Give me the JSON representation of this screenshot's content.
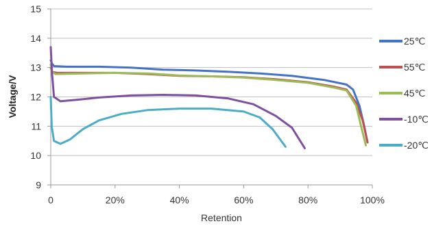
{
  "chart_data": {
    "type": "line",
    "title": "",
    "xlabel": "Retention",
    "ylabel": "Voltage/V",
    "xlim": [
      0,
      100
    ],
    "ylim": [
      9,
      15
    ],
    "grid": "horizontal",
    "legend_position": "right",
    "x_tick_labels": [
      {
        "value": 0,
        "label": "0"
      },
      {
        "value": 20,
        "label": "20%"
      },
      {
        "value": 40,
        "label": "40%"
      },
      {
        "value": 60,
        "label": "60%"
      },
      {
        "value": 80,
        "label": "80%"
      },
      {
        "value": 100,
        "label": "100%"
      }
    ],
    "y_tick_labels": [
      {
        "value": 9,
        "label": "9"
      },
      {
        "value": 10,
        "label": "10"
      },
      {
        "value": 11,
        "label": "11"
      },
      {
        "value": 12,
        "label": "12"
      },
      {
        "value": 13,
        "label": "13"
      },
      {
        "value": 14,
        "label": "14"
      },
      {
        "value": 15,
        "label": "15"
      }
    ],
    "series": [
      {
        "name": "25℃",
        "color": "#4472c4",
        "points": [
          [
            0,
            13.25
          ],
          [
            0.3,
            13.15
          ],
          [
            1,
            13.05
          ],
          [
            5,
            13.03
          ],
          [
            15,
            13.03
          ],
          [
            25,
            13.0
          ],
          [
            35,
            12.93
          ],
          [
            45,
            12.9
          ],
          [
            55,
            12.86
          ],
          [
            65,
            12.8
          ],
          [
            75,
            12.72
          ],
          [
            85,
            12.58
          ],
          [
            92,
            12.42
          ],
          [
            94,
            12.25
          ],
          [
            96,
            11.7
          ],
          [
            97.5,
            11.0
          ],
          [
            98.5,
            10.45
          ]
        ]
      },
      {
        "name": "55℃",
        "color": "#c0504d",
        "points": [
          [
            0,
            13.0
          ],
          [
            0.5,
            12.85
          ],
          [
            2,
            12.82
          ],
          [
            10,
            12.82
          ],
          [
            20,
            12.82
          ],
          [
            30,
            12.78
          ],
          [
            40,
            12.72
          ],
          [
            50,
            12.7
          ],
          [
            60,
            12.67
          ],
          [
            70,
            12.6
          ],
          [
            80,
            12.5
          ],
          [
            88,
            12.35
          ],
          [
            92,
            12.25
          ],
          [
            95,
            11.8
          ],
          [
            97,
            11.2
          ],
          [
            98.5,
            10.45
          ]
        ]
      },
      {
        "name": "45℃",
        "color": "#9bbb59",
        "points": [
          [
            0,
            13.1
          ],
          [
            0.4,
            12.85
          ],
          [
            1.5,
            12.78
          ],
          [
            10,
            12.8
          ],
          [
            20,
            12.82
          ],
          [
            30,
            12.8
          ],
          [
            40,
            12.73
          ],
          [
            50,
            12.7
          ],
          [
            60,
            12.66
          ],
          [
            70,
            12.58
          ],
          [
            80,
            12.48
          ],
          [
            88,
            12.32
          ],
          [
            92,
            12.22
          ],
          [
            95,
            11.7
          ],
          [
            96.5,
            11.0
          ],
          [
            98,
            10.35
          ]
        ]
      },
      {
        "name": "-10℃",
        "color": "#7f4f9f",
        "points": [
          [
            0,
            13.7
          ],
          [
            0.4,
            12.8
          ],
          [
            1,
            12.0
          ],
          [
            3,
            11.85
          ],
          [
            8,
            11.9
          ],
          [
            15,
            11.98
          ],
          [
            25,
            12.05
          ],
          [
            35,
            12.07
          ],
          [
            45,
            12.05
          ],
          [
            55,
            11.95
          ],
          [
            63,
            11.75
          ],
          [
            70,
            11.35
          ],
          [
            75,
            10.95
          ],
          [
            79,
            10.25
          ]
        ]
      },
      {
        "name": "-20℃",
        "color": "#4bacc6",
        "points": [
          [
            0,
            12.0
          ],
          [
            0.3,
            11.0
          ],
          [
            1,
            10.5
          ],
          [
            3,
            10.4
          ],
          [
            6,
            10.55
          ],
          [
            10,
            10.9
          ],
          [
            15,
            11.2
          ],
          [
            22,
            11.42
          ],
          [
            30,
            11.55
          ],
          [
            40,
            11.6
          ],
          [
            50,
            11.6
          ],
          [
            60,
            11.5
          ],
          [
            65,
            11.3
          ],
          [
            69,
            10.9
          ],
          [
            73,
            10.3
          ]
        ]
      }
    ]
  }
}
